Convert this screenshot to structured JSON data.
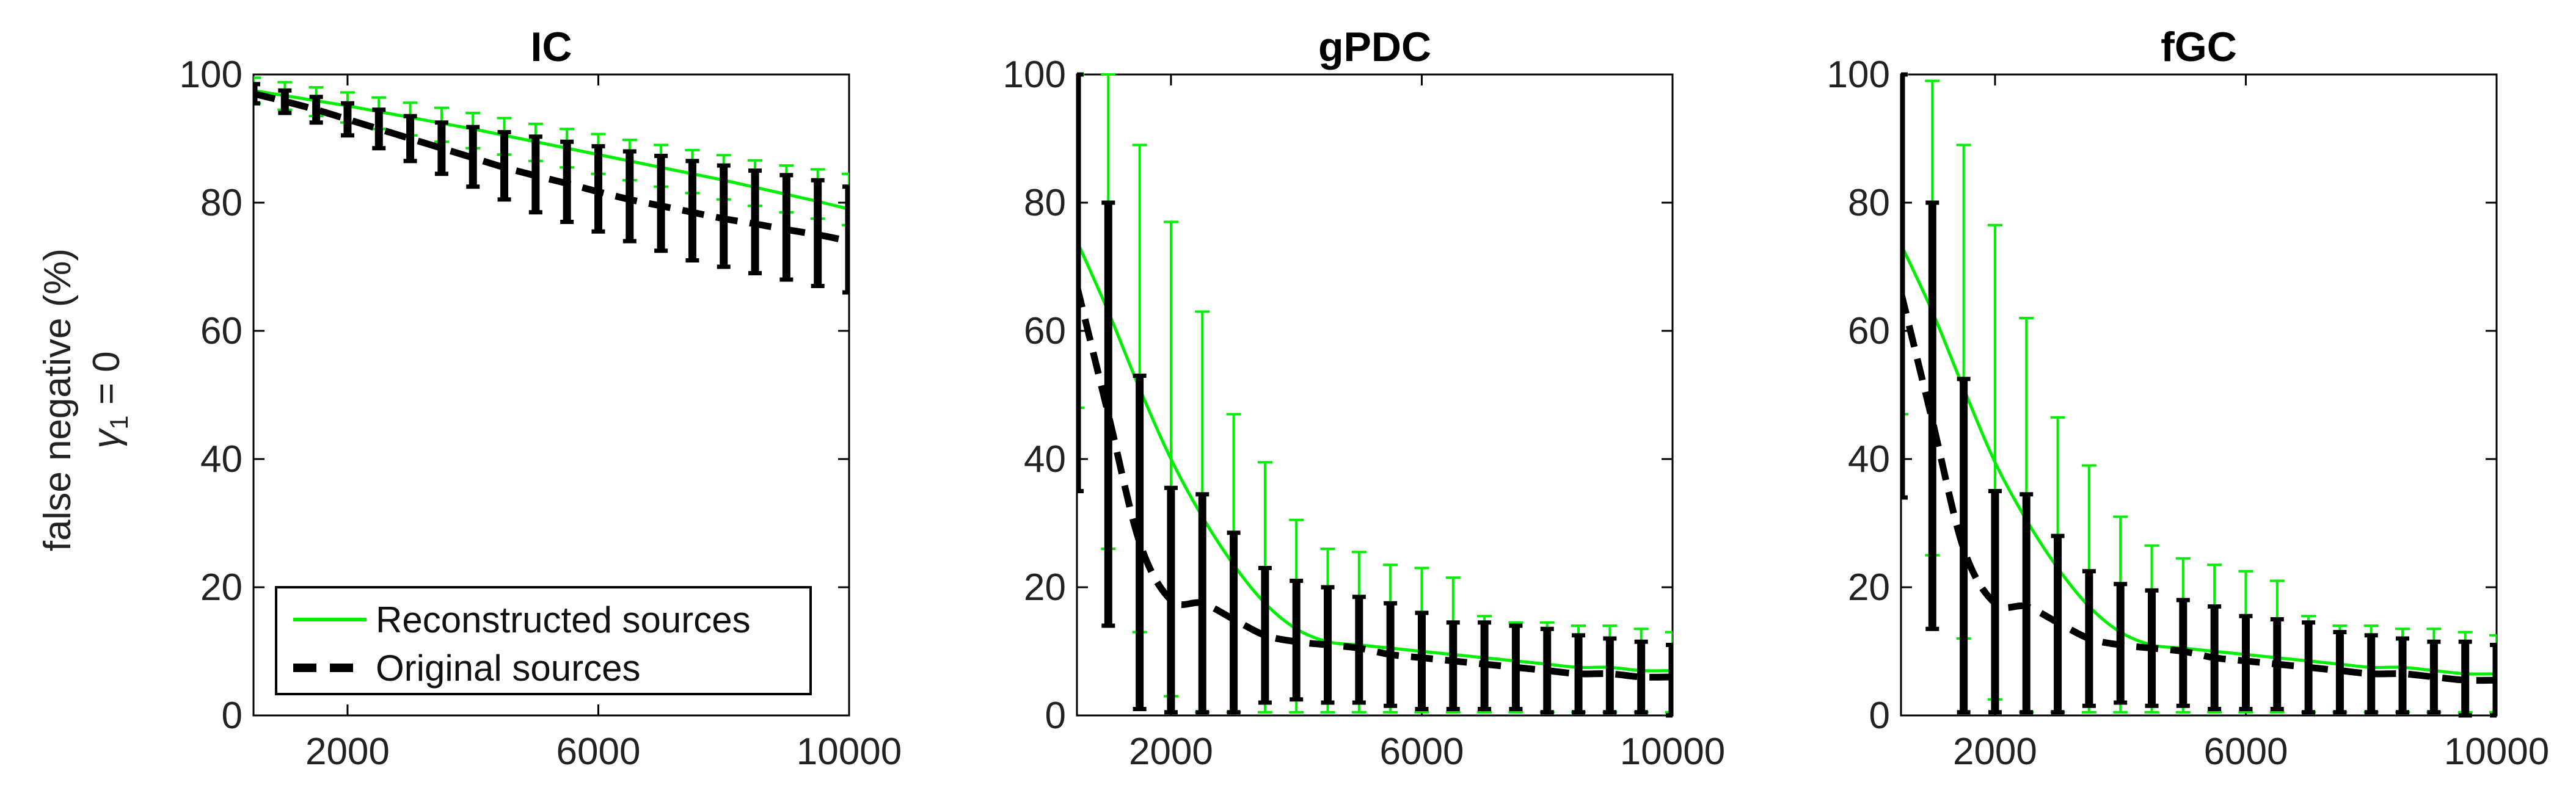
{
  "figure": {
    "ylabel_line1": "false negative (%)",
    "ylabel_line2_symbol": "γ",
    "ylabel_line2_subscript": "1",
    "ylabel_line2_rest": " = 0",
    "colors": {
      "reconstructed": "#00ee00",
      "original": "#000000",
      "axes": "#000000"
    }
  },
  "legend": {
    "placement": "bottom-left of first panel",
    "items": [
      {
        "label": "Reconstructed sources",
        "style": "solid-green"
      },
      {
        "label": "Original sources",
        "style": "dashed-black"
      }
    ]
  },
  "chart_data": [
    {
      "type": "line",
      "title": "IC",
      "xlim": [
        500,
        10000
      ],
      "ylim": [
        0,
        100
      ],
      "xticks": [
        2000,
        6000,
        10000
      ],
      "yticks": [
        0,
        20,
        40,
        60,
        80,
        100
      ],
      "x": [
        500,
        1000,
        1500,
        2000,
        2500,
        3000,
        3500,
        4000,
        4500,
        5000,
        5500,
        6000,
        6500,
        7000,
        7500,
        8000,
        8500,
        9000,
        9500,
        10000
      ],
      "series": [
        {
          "name": "Reconstructed sources",
          "values": [
            97.5,
            96.7,
            95.9,
            95.1,
            94.2,
            93.3,
            92.4,
            91.5,
            90.5,
            89.5,
            88.5,
            87.5,
            86.5,
            85.5,
            84.5,
            83.5,
            82.4,
            81.3,
            80.2,
            79.0
          ],
          "err_upper": [
            99.5,
            98.8,
            98.0,
            97.2,
            96.4,
            95.6,
            94.8,
            94.0,
            93.2,
            92.3,
            91.5,
            90.7,
            89.8,
            89.0,
            88.2,
            87.4,
            86.6,
            85.8,
            85.2,
            84.5
          ],
          "err_lower": [
            95.5,
            94.5,
            93.5,
            92.5,
            91.5,
            90.5,
            89.5,
            88.5,
            87.5,
            86.5,
            85.5,
            84.5,
            83.5,
            82.5,
            81.5,
            80.5,
            79.5,
            78.5,
            77.5,
            76.5
          ]
        },
        {
          "name": "Original sources",
          "values": [
            97.0,
            95.8,
            94.5,
            93.0,
            91.5,
            90.0,
            88.5,
            87.0,
            85.5,
            84.2,
            83.0,
            81.7,
            80.5,
            79.5,
            78.5,
            77.5,
            76.7,
            75.8,
            75.0,
            74.0
          ],
          "err_upper": [
            98.5,
            97.5,
            96.5,
            95.5,
            94.5,
            93.5,
            92.5,
            91.8,
            91.0,
            90.3,
            89.5,
            88.8,
            88.0,
            87.3,
            86.5,
            85.8,
            85.0,
            84.3,
            83.5,
            82.5
          ],
          "err_lower": [
            95.5,
            94.0,
            92.5,
            90.5,
            88.5,
            86.5,
            84.5,
            82.5,
            80.5,
            78.5,
            77.0,
            75.5,
            74.0,
            72.5,
            71.0,
            70.0,
            69.0,
            68.0,
            67.0,
            66.0
          ]
        }
      ]
    },
    {
      "type": "line",
      "title": "gPDC",
      "xlim": [
        500,
        10000
      ],
      "ylim": [
        0,
        100
      ],
      "xticks": [
        2000,
        6000,
        10000
      ],
      "yticks": [
        0,
        20,
        40,
        60,
        80,
        100
      ],
      "x": [
        500,
        1000,
        1500,
        2000,
        2500,
        3000,
        3500,
        4000,
        4500,
        5000,
        5500,
        6000,
        6500,
        7000,
        7500,
        8000,
        8500,
        9000,
        9500,
        10000
      ],
      "series": [
        {
          "name": "Reconstructed sources",
          "values": [
            74.0,
            63.0,
            51.0,
            40.0,
            31.0,
            23.5,
            17.5,
            13.5,
            11.5,
            11.0,
            10.5,
            10.0,
            9.5,
            9.0,
            8.5,
            8.0,
            7.5,
            7.5,
            7.0,
            7.0
          ],
          "err_upper": [
            100,
            100,
            89.0,
            77.0,
            63.0,
            47.0,
            39.5,
            30.5,
            26.0,
            25.5,
            23.5,
            23.0,
            21.5,
            15.5,
            14.5,
            14.5,
            14.0,
            14.0,
            13.5,
            13.0
          ],
          "err_lower": [
            48.0,
            26.0,
            13.0,
            3.0,
            0.5,
            0.5,
            0.5,
            0.5,
            0.5,
            0.5,
            0.5,
            0.5,
            0.5,
            0.5,
            0.5,
            0.5,
            0.5,
            0.5,
            0.5,
            0.5
          ]
        },
        {
          "name": "Original sources",
          "values": [
            67.0,
            47.0,
            27.0,
            18.0,
            17.5,
            15.0,
            12.5,
            11.5,
            11.0,
            10.5,
            9.5,
            9.0,
            8.5,
            8.0,
            7.5,
            7.0,
            6.5,
            6.5,
            6.0,
            6.0
          ],
          "err_upper": [
            100,
            80.0,
            53.0,
            35.5,
            34.5,
            28.5,
            23.0,
            21.0,
            20.0,
            18.5,
            17.5,
            16.0,
            14.5,
            14.5,
            14.0,
            13.5,
            12.5,
            12.0,
            11.5,
            11.0
          ],
          "err_lower": [
            35.0,
            14.0,
            1.0,
            0.5,
            0.5,
            0.5,
            2.0,
            2.5,
            2.0,
            2.0,
            1.5,
            1.0,
            1.0,
            1.0,
            1.0,
            0.5,
            0.5,
            0.5,
            0.5,
            0.0
          ]
        }
      ]
    },
    {
      "type": "line",
      "title": "fGC",
      "xlim": [
        500,
        10000
      ],
      "ylim": [
        0,
        100
      ],
      "xticks": [
        2000,
        6000,
        10000
      ],
      "yticks": [
        0,
        20,
        40,
        60,
        80,
        100
      ],
      "x": [
        500,
        1000,
        1500,
        2000,
        2500,
        3000,
        3500,
        4000,
        4500,
        5000,
        5500,
        6000,
        6500,
        7000,
        7500,
        8000,
        8500,
        9000,
        9500,
        10000
      ],
      "series": [
        {
          "name": "Reconstructed sources",
          "values": [
            73.5,
            63.0,
            51.0,
            39.5,
            30.5,
            23.0,
            17.0,
            13.0,
            11.0,
            10.5,
            10.0,
            9.5,
            9.0,
            8.5,
            8.0,
            7.5,
            7.5,
            7.0,
            6.5,
            6.5
          ],
          "err_upper": [
            100,
            99.0,
            89.0,
            76.5,
            62.0,
            46.5,
            39.0,
            31.0,
            26.5,
            24.5,
            23.5,
            22.5,
            21.0,
            15.5,
            14.0,
            14.0,
            13.5,
            13.5,
            13.0,
            12.5
          ],
          "err_lower": [
            47.0,
            25.0,
            12.0,
            2.5,
            0.5,
            0.5,
            0.5,
            0.5,
            0.5,
            0.5,
            0.5,
            0.5,
            0.5,
            0.5,
            0.5,
            0.5,
            0.5,
            0.5,
            0.5,
            0.5
          ]
        },
        {
          "name": "Original sources",
          "values": [
            66.0,
            46.0,
            26.0,
            17.5,
            17.0,
            14.5,
            12.0,
            11.0,
            10.5,
            10.0,
            9.0,
            8.5,
            8.0,
            7.5,
            7.0,
            6.5,
            6.5,
            6.0,
            5.5,
            5.5
          ],
          "err_upper": [
            100,
            80.0,
            52.5,
            35.0,
            34.5,
            28.0,
            22.5,
            20.5,
            19.5,
            18.0,
            17.0,
            15.5,
            15.0,
            14.5,
            13.0,
            12.5,
            12.0,
            11.5,
            11.5,
            11.0
          ],
          "err_lower": [
            34.0,
            13.5,
            0.5,
            0.5,
            0.5,
            0.5,
            1.5,
            2.0,
            1.5,
            1.5,
            1.0,
            1.0,
            1.0,
            0.5,
            0.5,
            0.5,
            0.5,
            0.5,
            0.0,
            0.0
          ]
        }
      ]
    }
  ]
}
